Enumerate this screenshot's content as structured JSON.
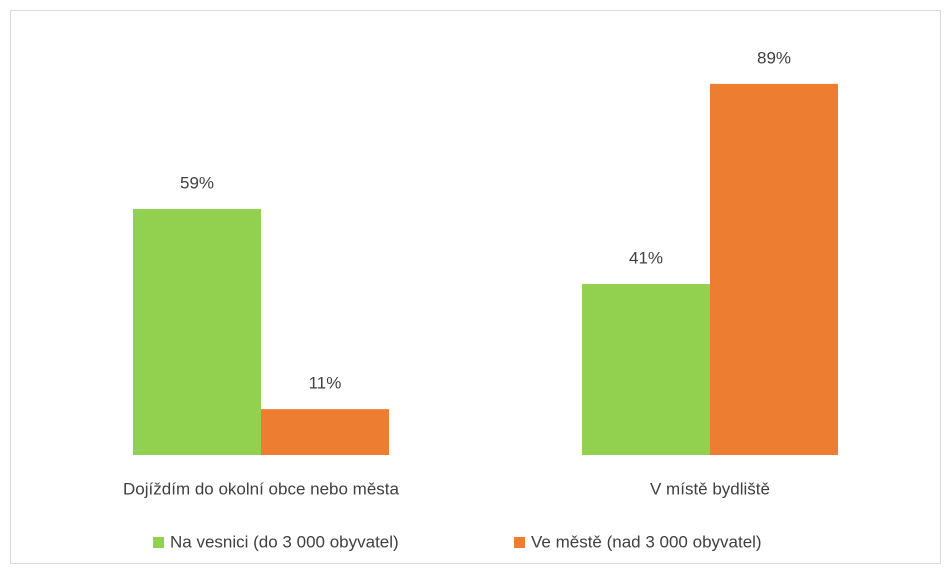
{
  "chart_data": {
    "type": "bar",
    "categories": [
      "Dojíždím do okolní obce nebo města",
      "V místě bydliště"
    ],
    "series": [
      {
        "name": "Na vesnici (do 3 000 obyvatel)",
        "color": "#92d050",
        "values": [
          59,
          41
        ],
        "value_labels": [
          "59%",
          "41%"
        ]
      },
      {
        "name": "Ve městě (nad 3 000 obyvatel)",
        "color": "#ed7d31",
        "values": [
          11,
          89
        ],
        "value_labels": [
          "11%",
          "89%"
        ]
      }
    ]
  }
}
